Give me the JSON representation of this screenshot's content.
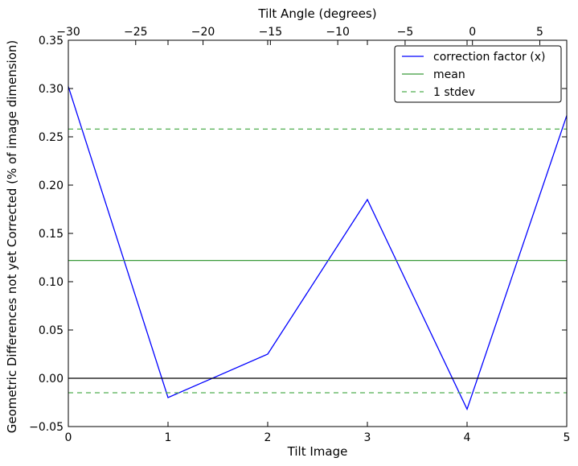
{
  "chart_data": {
    "type": "line",
    "title": "",
    "xlabel": "Tilt Image",
    "ylabel": "Geometric Differences not yet Corrected (% of image dimension)",
    "top_xlabel": "Tilt Angle (degrees)",
    "xlim": [
      0,
      5
    ],
    "ylim": [
      -0.05,
      0.35
    ],
    "top_xlim": [
      -30,
      7
    ],
    "x_ticks": [
      "0",
      "1",
      "2",
      "3",
      "4",
      "5"
    ],
    "y_ticks": [
      "−0.05",
      "0.00",
      "0.05",
      "0.10",
      "0.15",
      "0.20",
      "0.25",
      "0.30",
      "0.35"
    ],
    "top_x_ticks": [
      "−30",
      "−25",
      "−20",
      "−15",
      "−10",
      "−5",
      "0",
      "5"
    ],
    "grid": false,
    "legend_position": "top-right",
    "series": [
      {
        "name": "correction factor (x)",
        "style": "solid",
        "color": "#0000ff",
        "x": [
          0,
          1,
          2,
          3,
          4,
          5
        ],
        "values": [
          0.302,
          -0.02,
          0.025,
          0.185,
          -0.032,
          0.272
        ]
      },
      {
        "name": "mean",
        "style": "solid",
        "color": "#3a9a3a",
        "x": [
          0,
          5
        ],
        "values": [
          0.122,
          0.122
        ]
      },
      {
        "name": "1 stdev",
        "style": "dashed",
        "color": "#4fae4f",
        "x": [
          0,
          5
        ],
        "values": [
          0.258,
          0.258
        ]
      },
      {
        "name": "",
        "style": "dashed",
        "color": "#4fae4f",
        "x": [
          0,
          5
        ],
        "values": [
          -0.015,
          -0.015
        ]
      },
      {
        "name": "",
        "style": "solid",
        "color": "#000000",
        "x": [
          0,
          5
        ],
        "values": [
          0.0,
          0.0
        ]
      }
    ]
  }
}
